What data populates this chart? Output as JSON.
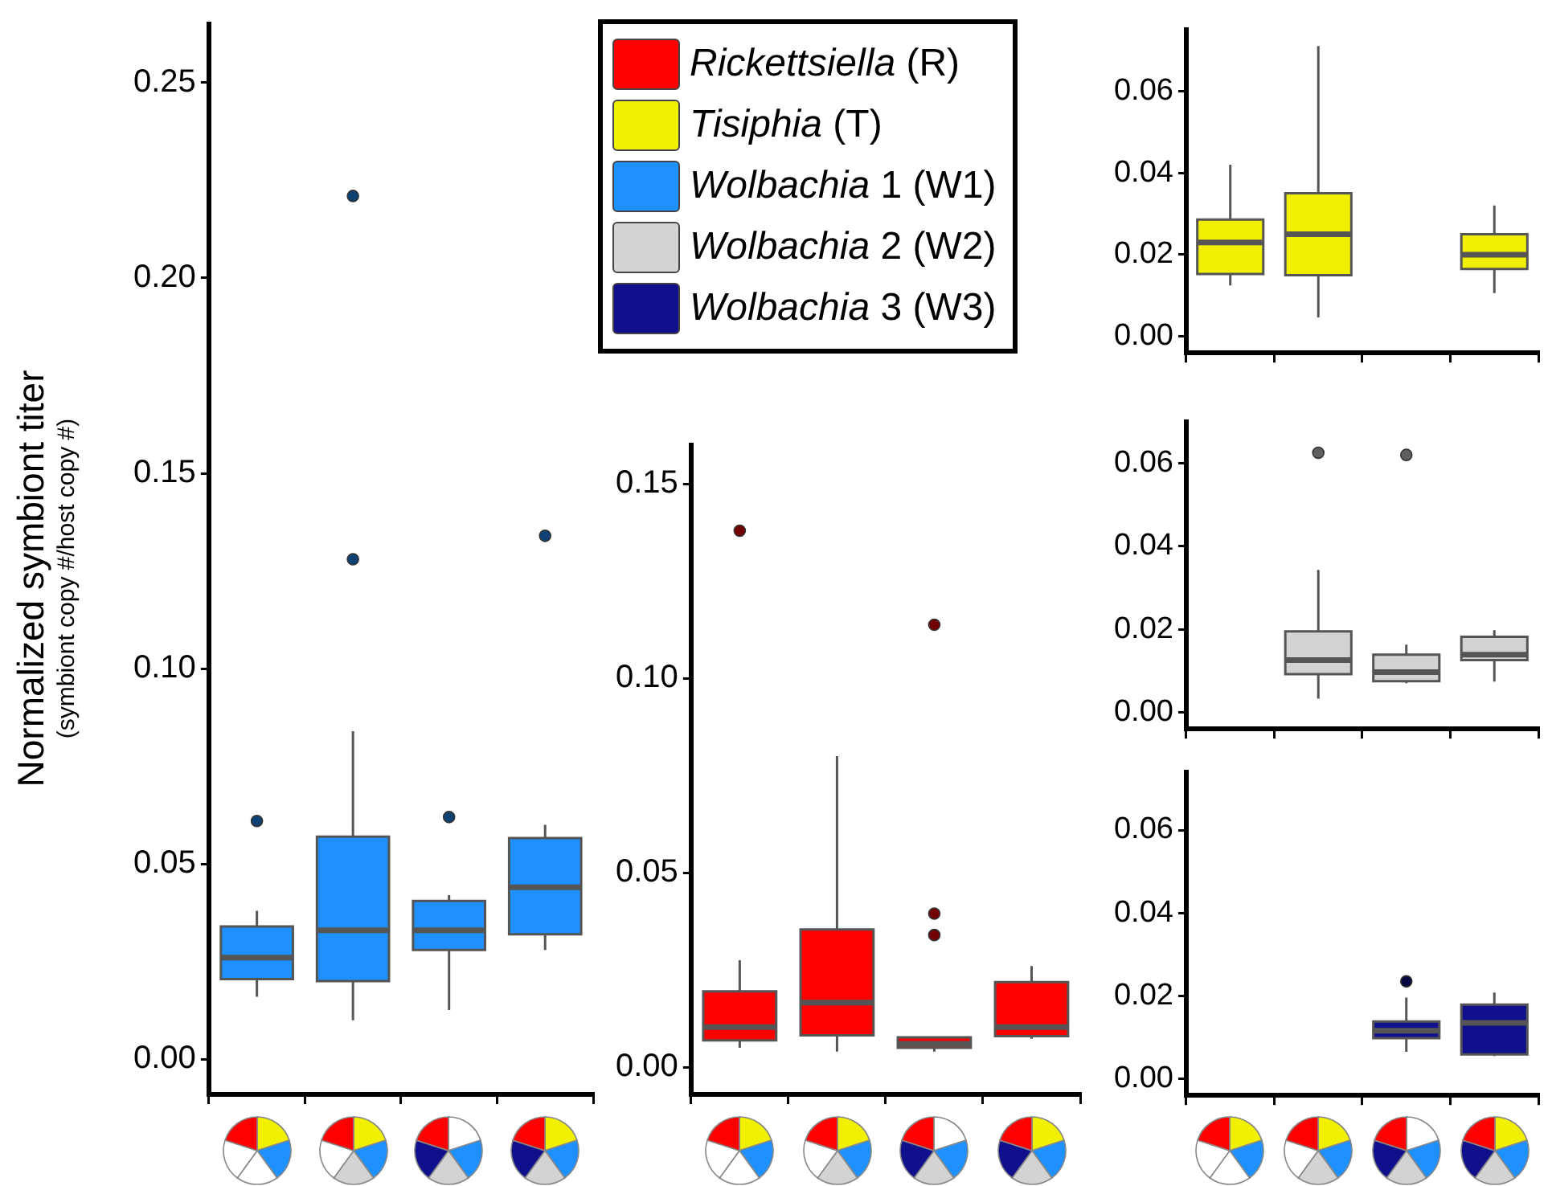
{
  "chart_data": [
    {
      "type": "box",
      "ylabel": "Normalized symbiont titer",
      "annotations": [
        "(symbiont copy #/host copy #)"
      ],
      "legend": "top right",
      "categories": [
        null,
        null,
        null,
        null
      ],
      "ylim": [
        -0.009,
        0.265
      ],
      "yticks": [
        {
          "value": 0,
          "label": "0.00"
        },
        {
          "value": 0.05,
          "label": "0.05"
        },
        {
          "value": 0.1,
          "label": "0.10"
        },
        {
          "value": 0.15,
          "label": "0.15"
        },
        {
          "value": 0.2,
          "label": "0.20"
        },
        {
          "value": 0.25,
          "label": "0.25"
        }
      ],
      "series": [
        {
          "name": "Wolbachia 1 (W1)",
          "color": "#1e90ff",
          "boxes": [
            {
              "low": 0.016,
              "q1": 0.0205,
              "median": 0.026,
              "q3": 0.034,
              "high": 0.038,
              "outliers": [
                0.061
              ]
            },
            {
              "low": 0.01,
              "q1": 0.02,
              "median": 0.033,
              "q3": 0.057,
              "high": 0.084,
              "outliers": [
                0.128,
                0.221
              ]
            },
            {
              "low": 0.0126,
              "q1": 0.028,
              "median": 0.033,
              "q3": 0.0405,
              "high": 0.042,
              "outliers": [
                0.062
              ]
            },
            {
              "low": 0.028,
              "q1": 0.032,
              "median": 0.044,
              "q3": 0.0566,
              "high": 0.06,
              "outliers": [
                0.134
              ]
            }
          ]
        }
      ]
    },
    {
      "type": "box",
      "categories": [
        null,
        null,
        null,
        null
      ],
      "ylim": [
        -0.007,
        0.16
      ],
      "yticks": [
        {
          "value": 0,
          "label": "0.00"
        },
        {
          "value": 0.05,
          "label": "0.05"
        },
        {
          "value": 0.1,
          "label": "0.10"
        },
        {
          "value": 0.15,
          "label": "0.15"
        }
      ],
      "series": [
        {
          "name": "Rickettsiella (R)",
          "color": "#ff0000",
          "boxes": [
            {
              "low": 0.005,
              "q1": 0.0069,
              "median": 0.0103,
              "q3": 0.0195,
              "high": 0.0275,
              "outliers": [
                0.138
              ]
            },
            {
              "low": 0.004,
              "q1": 0.0082,
              "median": 0.0166,
              "q3": 0.0354,
              "high": 0.08
            },
            {
              "low": 0.004,
              "q1": 0.005,
              "median": 0.006,
              "q3": 0.0077,
              "high": 0.0077,
              "outliers": [
                0.034,
                0.0395,
                0.1138
              ]
            },
            {
              "low": 0.0073,
              "q1": 0.008,
              "median": 0.0103,
              "q3": 0.0219,
              "high": 0.026
            }
          ]
        }
      ]
    },
    {
      "type": "box",
      "categories": [
        null,
        null,
        null,
        null
      ],
      "ylim": [
        -0.004,
        0.075
      ],
      "yticks": [
        {
          "value": 0,
          "label": "0.00"
        },
        {
          "value": 0.02,
          "label": "0.02"
        },
        {
          "value": 0.04,
          "label": "0.04"
        },
        {
          "value": 0.06,
          "label": "0.06"
        }
      ],
      "series": [
        {
          "name": "Tisiphia (T)",
          "color": "#f0f000",
          "boxes": [
            {
              "low": 0.0125,
              "q1": 0.0153,
              "median": 0.023,
              "q3": 0.0286,
              "high": 0.042
            },
            {
              "low": 0.0047,
              "q1": 0.015,
              "median": 0.025,
              "q3": 0.035,
              "high": 0.071
            },
            null,
            {
              "low": 0.0106,
              "q1": 0.0165,
              "median": 0.02,
              "q3": 0.025,
              "high": 0.032
            }
          ]
        }
      ]
    },
    {
      "type": "box",
      "categories": [
        null,
        null,
        null,
        null
      ],
      "ylim": [
        -0.004,
        0.07
      ],
      "yticks": [
        {
          "value": 0,
          "label": "0.00"
        },
        {
          "value": 0.02,
          "label": "0.02"
        },
        {
          "value": 0.04,
          "label": "0.04"
        },
        {
          "value": 0.06,
          "label": "0.06"
        }
      ],
      "series": [
        {
          "name": "Wolbachia 2 (W2)",
          "color": "#d3d3d3",
          "boxes": [
            null,
            {
              "low": 0.0033,
              "q1": 0.0092,
              "median": 0.0126,
              "q3": 0.0195,
              "high": 0.0343,
              "outliers": [
                0.0625
              ]
            },
            {
              "low": 0.007,
              "q1": 0.0075,
              "median": 0.0097,
              "q3": 0.0139,
              "high": 0.0163,
              "outliers": [
                0.062
              ]
            },
            {
              "low": 0.0074,
              "q1": 0.0126,
              "median": 0.0139,
              "q3": 0.0182,
              "high": 0.0198
            }
          ]
        }
      ]
    },
    {
      "type": "box",
      "categories": [
        null,
        null,
        null,
        null
      ],
      "ylim": [
        -0.004,
        0.074
      ],
      "yticks": [
        {
          "value": 0,
          "label": "0.00"
        },
        {
          "value": 0.02,
          "label": "0.02"
        },
        {
          "value": 0.04,
          "label": "0.04"
        },
        {
          "value": 0.06,
          "label": "0.06"
        }
      ],
      "series": [
        {
          "name": "Wolbachia 3 (W3)",
          "color": "#10108c",
          "boxes": [
            null,
            null,
            {
              "low": 0.0065,
              "q1": 0.0098,
              "median": 0.0116,
              "q3": 0.0138,
              "high": 0.0196,
              "outliers": [
                0.0235
              ]
            },
            {
              "low": 0.0055,
              "q1": 0.0059,
              "median": 0.0135,
              "q3": 0.0179,
              "high": 0.0208
            }
          ]
        }
      ]
    }
  ]
}
